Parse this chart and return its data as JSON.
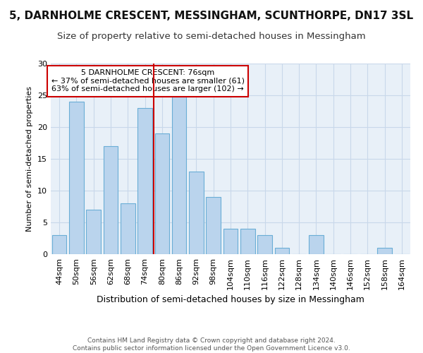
{
  "title": "5, DARNHOLME CRESCENT, MESSINGHAM, SCUNTHORPE, DN17 3SL",
  "subtitle": "Size of property relative to semi-detached houses in Messingham",
  "xlabel": "Distribution of semi-detached houses by size in Messingham",
  "ylabel": "Number of semi-detached properties",
  "categories": [
    "44sqm",
    "50sqm",
    "56sqm",
    "62sqm",
    "68sqm",
    "74sqm",
    "80sqm",
    "86sqm",
    "92sqm",
    "98sqm",
    "104sqm",
    "110sqm",
    "116sqm",
    "122sqm",
    "128sqm",
    "134sqm",
    "140sqm",
    "146sqm",
    "152sqm",
    "158sqm",
    "164sqm"
  ],
  "values": [
    3,
    24,
    7,
    17,
    8,
    23,
    19,
    25,
    13,
    9,
    4,
    4,
    3,
    1,
    0,
    3,
    0,
    0,
    0,
    1,
    0
  ],
  "bar_color": "#bad4ed",
  "bar_edge_color": "#6aaed6",
  "red_line_x": 5.5,
  "highlight_color": "#cc0000",
  "annotation_text": "5 DARNHOLME CRESCENT: 76sqm\n← 37% of semi-detached houses are smaller (61)\n63% of semi-detached houses are larger (102) →",
  "annotation_box_color": "white",
  "annotation_box_edge_color": "#cc0000",
  "ylim": [
    0,
    30
  ],
  "yticks": [
    0,
    5,
    10,
    15,
    20,
    25,
    30
  ],
  "footer_text": "Contains HM Land Registry data © Crown copyright and database right 2024.\nContains public sector information licensed under the Open Government Licence v3.0.",
  "title_fontsize": 11,
  "subtitle_fontsize": 9.5,
  "xlabel_fontsize": 9,
  "ylabel_fontsize": 8,
  "tick_fontsize": 8,
  "annotation_fontsize": 8,
  "footer_fontsize": 6.5
}
